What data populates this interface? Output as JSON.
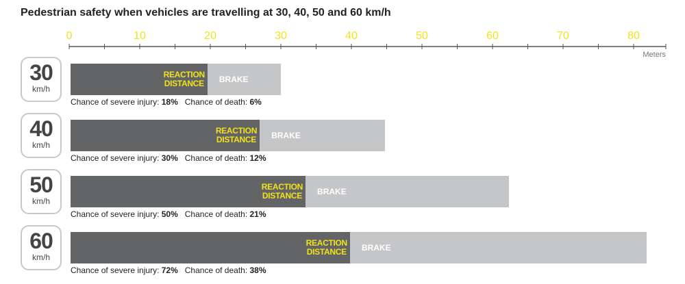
{
  "title": "Pedestrian safety when vehicles are travelling at 30, 40, 50 and 60 km/h",
  "chart_data": {
    "type": "bar",
    "orientation": "horizontal",
    "stacked": true,
    "title": "Pedestrian safety when vehicles are travelling at 30, 40, 50 and 60 km/h",
    "axis": {
      "ticks": [
        0,
        10,
        20,
        30,
        40,
        50,
        60,
        70,
        80
      ],
      "minor_step": 5,
      "range": [
        0,
        85
      ],
      "unit_label": "Meters",
      "position": "top",
      "tick_label_color": "#f3e21a"
    },
    "categories": [
      "30",
      "40",
      "50",
      "60"
    ],
    "speed_unit": "km/h",
    "series": [
      {
        "name": "REACTION DISTANCE",
        "values": [
          19.6,
          27,
          33.5,
          39.8
        ],
        "color": "#636466"
      },
      {
        "name": "BRAKE",
        "values": [
          10.4,
          17.8,
          28.8,
          42
        ],
        "color": "#c5c6c8"
      }
    ],
    "rows": [
      {
        "speed": "30",
        "unit": "km/h",
        "reaction_label": [
          "REACTION",
          "DISTANCE"
        ],
        "brake_label": "BRAKE",
        "injury_label": "Chance of severe injury:",
        "injury_value": "18%",
        "death_label": "Chance of death:",
        "death_value": "6%"
      },
      {
        "speed": "40",
        "unit": "km/h",
        "reaction_label": [
          "REACTION",
          "DISTANCE"
        ],
        "brake_label": "BRAKE",
        "injury_label": "Chance of severe injury:",
        "injury_value": "30%",
        "death_label": "Chance of death:",
        "death_value": "12%"
      },
      {
        "speed": "50",
        "unit": "km/h",
        "reaction_label": [
          "REACTION",
          "DISTANCE"
        ],
        "brake_label": "BRAKE",
        "injury_label": "Chance of severe injury:",
        "injury_value": "50%",
        "death_label": "Chance of death:",
        "death_value": "21%"
      },
      {
        "speed": "60",
        "unit": "km/h",
        "reaction_label": [
          "REACTION",
          "DISTANCE"
        ],
        "brake_label": "BRAKE",
        "injury_label": "Chance of severe injury:",
        "injury_value": "72%",
        "death_label": "Chance of death:",
        "death_value": "38%"
      }
    ],
    "legend": "inline",
    "grid": false
  }
}
